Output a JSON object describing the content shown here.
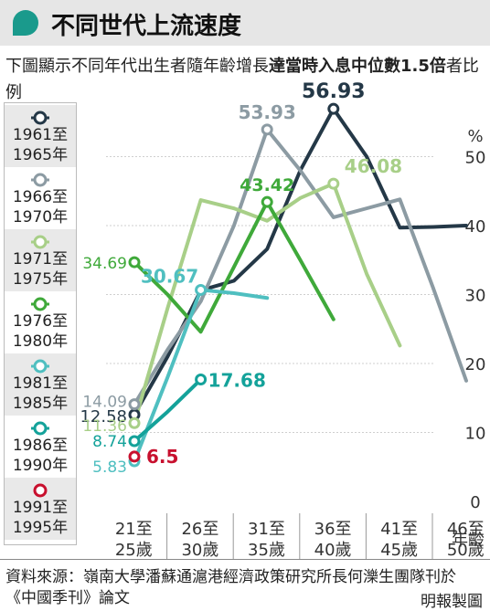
{
  "header": {
    "title": "不同世代上流速度"
  },
  "subtitle": {
    "lead": "下圖顯示不同年代出生者隨年齡增長",
    "bold": "達當時入息中位數1.5倍",
    "tail": "者比例"
  },
  "footer": {
    "source": "資料來源：嶺南大學潘蘇通滬港經濟政策研究所長何濼生團隊刊於《中國季刊》論文",
    "credit": "明報製圖"
  },
  "chart_data": {
    "type": "line",
    "title": "不同世代上流速度",
    "ylabel": "%",
    "xlabel": "年齡",
    "ylim": [
      0,
      55
    ],
    "yticks": [
      0,
      10,
      20,
      30,
      40,
      50
    ],
    "categories": [
      "21至25歲",
      "26至30歲",
      "31至35歲",
      "36至40歲",
      "41至45歲",
      "46至50歲"
    ],
    "category_lines": [
      [
        "21至",
        "25歲"
      ],
      [
        "26至",
        "30歲"
      ],
      [
        "31至",
        "35歲"
      ],
      [
        "36至",
        "40歲"
      ],
      [
        "41至",
        "45歲"
      ],
      [
        "46至",
        "50歲"
      ]
    ],
    "grid": true,
    "legend_position": "left",
    "series": [
      {
        "name": "1961至1965年",
        "legend_lines": [
          "1961至",
          "1965年"
        ],
        "color": "#243847",
        "x": [
          0,
          0.5,
          1,
          1.5,
          2,
          2.5,
          3,
          3.5,
          4,
          4.5,
          5
        ],
        "values": [
          12.58,
          21.0,
          30.6,
          32.0,
          36.6,
          48.0,
          56.93,
          50.0,
          39.7,
          39.8,
          40.0
        ],
        "marker_index": 6,
        "start_label": "12.58",
        "peak_label": "56.93"
      },
      {
        "name": "1966至1970年",
        "legend_lines": [
          "1966至",
          "1970年"
        ],
        "color": "#8c9ba3",
        "x": [
          0,
          0.5,
          1,
          1.5,
          2,
          2.5,
          3,
          3.5,
          4,
          4.5,
          5
        ],
        "values": [
          14.09,
          22.0,
          29.0,
          40.0,
          53.93,
          48.0,
          41.2,
          42.5,
          43.8,
          31.0,
          17.5
        ],
        "marker_index": 4,
        "start_label": "14.09",
        "peak_label": "53.93"
      },
      {
        "name": "1971至1975年",
        "legend_lines": [
          "1971至",
          "1975年"
        ],
        "color": "#a8cf88",
        "x": [
          0,
          0.5,
          1,
          1.5,
          2,
          2.5,
          3,
          3.5,
          4
        ],
        "values": [
          11.36,
          28.0,
          43.7,
          42.5,
          40.7,
          44.0,
          46.08,
          33.0,
          22.6
        ],
        "marker_index": 6,
        "start_label": "11.36",
        "peak_label": "46.08"
      },
      {
        "name": "1976至1980年",
        "legend_lines": [
          "1976至",
          "1980年"
        ],
        "color": "#3fa93a",
        "x": [
          0,
          0.5,
          1,
          1.5,
          2,
          2.5,
          3
        ],
        "values": [
          34.69,
          30.0,
          24.6,
          34.0,
          43.42,
          35.0,
          26.4
        ],
        "marker_index": 4,
        "start_label": "34.69",
        "peak_label": "43.42",
        "start_marker": true
      },
      {
        "name": "1981至1985年",
        "legend_lines": [
          "1981至",
          "1985年"
        ],
        "color": "#4fbfc0",
        "x": [
          0,
          0.5,
          1,
          1.5,
          2
        ],
        "values": [
          5.83,
          18.0,
          30.67,
          30.2,
          29.5
        ],
        "marker_index": 2,
        "start_label": "5.83",
        "peak_label": "30.67"
      },
      {
        "name": "1986至1990年",
        "legend_lines": [
          "1986至",
          "1990年"
        ],
        "color": "#14a29a",
        "x": [
          0,
          0.5,
          1
        ],
        "values": [
          8.74,
          13.0,
          17.68
        ],
        "marker_index": 2,
        "start_label": "8.74",
        "peak_label": "17.68",
        "start_marker": true
      },
      {
        "name": "1991至1995年",
        "legend_lines": [
          "1991至",
          "1995年"
        ],
        "color": "#c8102e",
        "x": [
          0
        ],
        "values": [
          6.5
        ],
        "marker_index": 0,
        "peak_label": "6.5"
      }
    ]
  }
}
